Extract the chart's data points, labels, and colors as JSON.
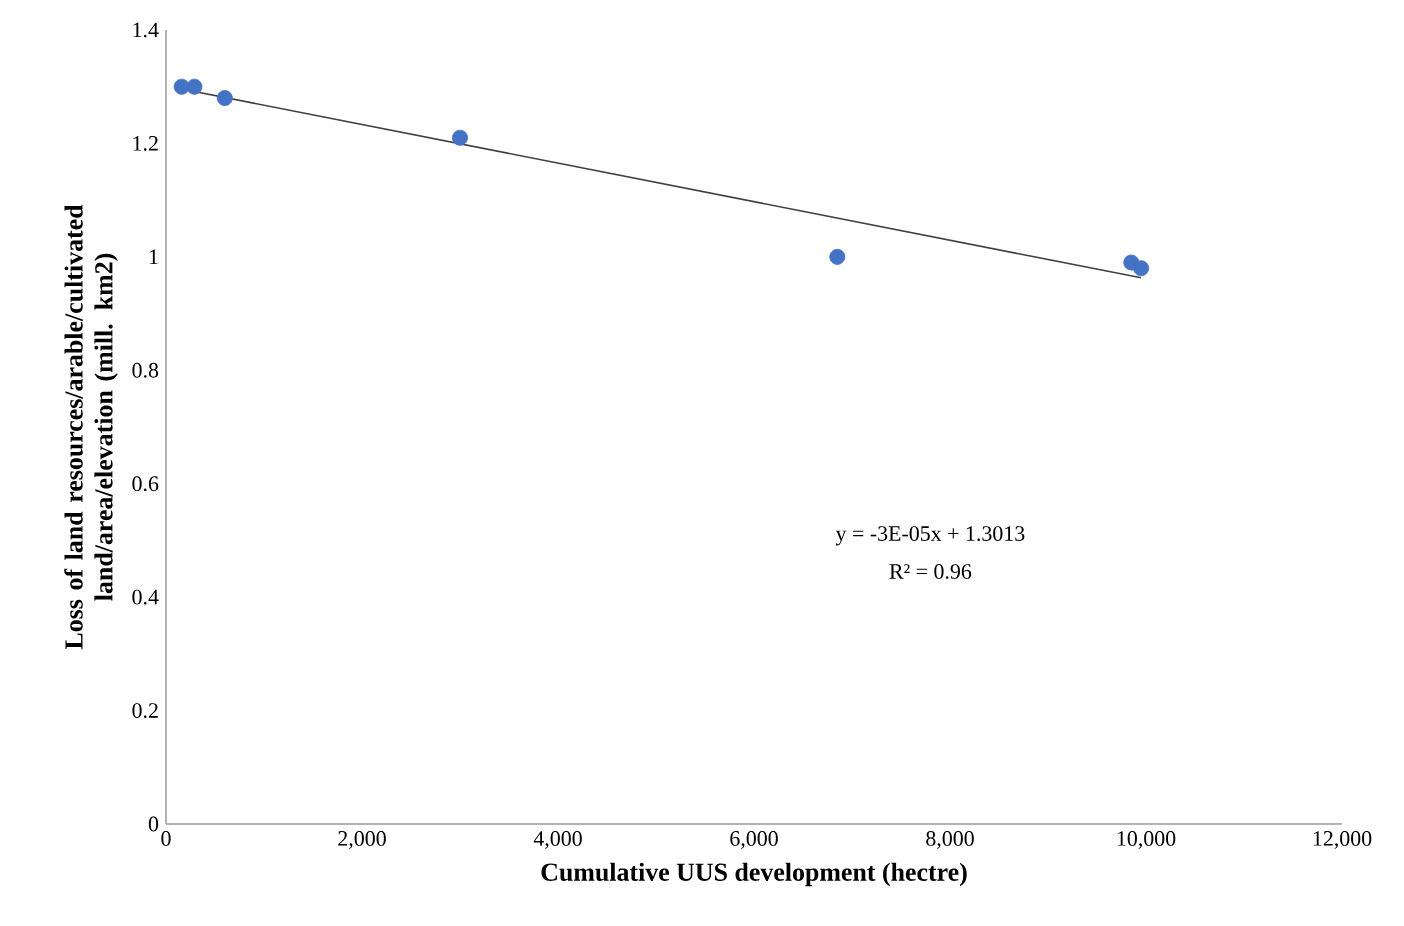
{
  "chart_data": {
    "type": "scatter",
    "xlabel": "Cumulative UUS development (hectre)",
    "ylabel": "Loss of land resources/arable/cultivated land/area/elevation (mill. km2)",
    "xlim": [
      0,
      12000
    ],
    "xticks": [
      0,
      {
        "value": 2000,
        "label": "2,000"
      },
      {
        "value": 4000,
        "label": "4,000"
      },
      {
        "value": 6000,
        "label": "6,000"
      },
      {
        "value": 8000,
        "label": "8,000"
      },
      {
        "value": 10000,
        "label": "10,000"
      },
      {
        "value": 12000,
        "label": "12,000"
      }
    ],
    "ylim": [
      0,
      1.4
    ],
    "yticks": [
      0,
      0.2,
      0.4,
      0.6,
      0.8,
      1,
      1.2,
      1.4
    ],
    "series": [
      {
        "color": "#4472c4",
        "marker": "circle",
        "x": [
          160,
          290,
          600,
          3000,
          6850,
          9850,
          9950
        ],
        "values": [
          1.3,
          1.3,
          1.28,
          1.21,
          1.0,
          0.99,
          0.98
        ]
      },
      {
        "type": "line",
        "color": "#404040",
        "marker": "none",
        "x": [
          160,
          9950
        ],
        "values": [
          1.296,
          0.963
        ]
      }
    ],
    "annotations": [
      "y = -3E-05x + 1.3013",
      "R² = 0.96"
    ],
    "grid": false
  }
}
